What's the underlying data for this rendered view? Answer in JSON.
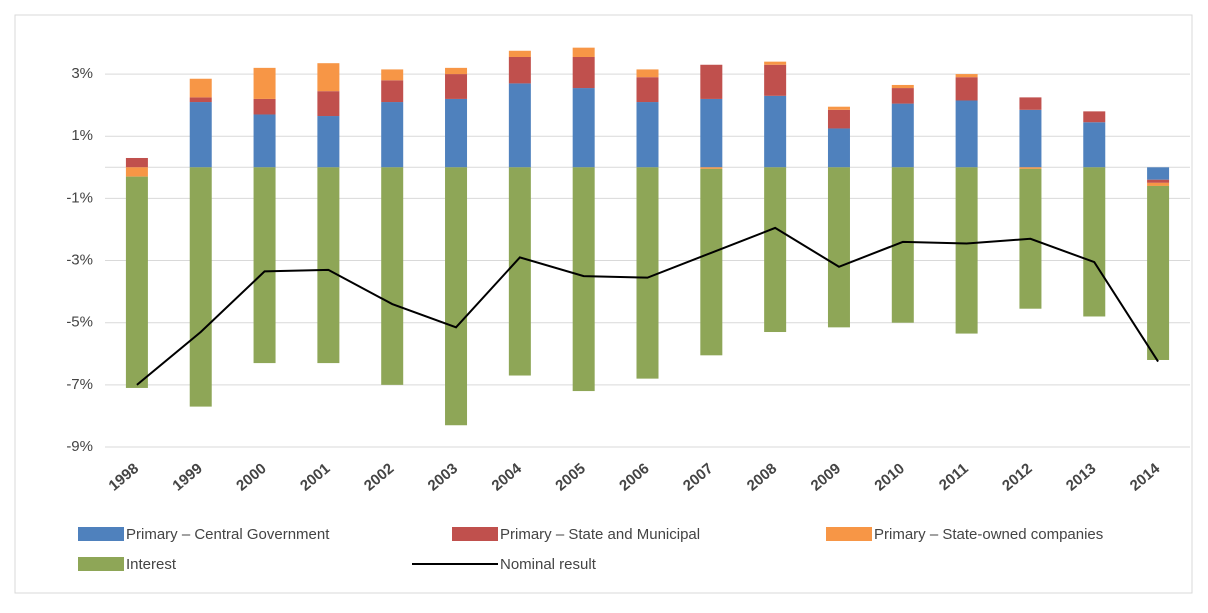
{
  "chart_data": {
    "type": "stacked-bar-line",
    "categories": [
      "1998",
      "1999",
      "2000",
      "2001",
      "2002",
      "2003",
      "2004",
      "2005",
      "2006",
      "2007",
      "2008",
      "2009",
      "2010",
      "2011",
      "2012",
      "2013",
      "2014"
    ],
    "ylim": [
      -9,
      4
    ],
    "yticks": [
      {
        "value": -9,
        "label": "-9%"
      },
      {
        "value": -7,
        "label": "-7%"
      },
      {
        "value": -5,
        "label": "-5%"
      },
      {
        "value": -3,
        "label": "-3%"
      },
      {
        "value": -1,
        "label": "-1%"
      },
      {
        "value": 1,
        "label": "1%"
      },
      {
        "value": 3,
        "label": "3%"
      }
    ],
    "grid": true,
    "series": [
      {
        "name": "Primary – Central Government",
        "color": "#4f81bd",
        "kind": "bar",
        "values": [
          0,
          2.1,
          1.7,
          1.65,
          2.1,
          2.2,
          2.7,
          2.55,
          2.1,
          2.2,
          2.3,
          1.25,
          2.05,
          2.15,
          1.85,
          1.45,
          -0.4
        ]
      },
      {
        "name": "Primary – State and Municipal",
        "color": "#c0504d",
        "kind": "bar",
        "values": [
          0.3,
          0.15,
          0.5,
          0.8,
          0.7,
          0.8,
          0.85,
          1.0,
          0.8,
          1.1,
          1.0,
          0.6,
          0.5,
          0.75,
          0.4,
          0.35,
          -0.1
        ]
      },
      {
        "name": "Primary – State-owned companies",
        "color": "#f79646",
        "kind": "bar",
        "values": [
          -0.3,
          0.6,
          1.0,
          0.9,
          0.35,
          0.2,
          0.2,
          0.3,
          0.25,
          -0.05,
          0.1,
          0.1,
          0.1,
          0.1,
          -0.05,
          0,
          -0.1
        ]
      },
      {
        "name": "Interest",
        "color": "#8ea657",
        "kind": "bar",
        "values": [
          -6.8,
          -7.7,
          -6.3,
          -6.3,
          -7.0,
          -8.3,
          -6.7,
          -7.2,
          -6.8,
          -6.0,
          -5.3,
          -5.15,
          -5.0,
          -5.35,
          -4.5,
          -4.8,
          -5.6
        ]
      },
      {
        "name": "Nominal result",
        "color": "#000000",
        "kind": "line",
        "values": [
          -7.0,
          -5.3,
          -3.35,
          -3.3,
          -4.4,
          -5.15,
          -2.9,
          -3.5,
          -3.55,
          -2.75,
          -1.95,
          -3.2,
          -2.4,
          -2.45,
          -2.3,
          -3.05,
          -6.25
        ]
      }
    ]
  }
}
